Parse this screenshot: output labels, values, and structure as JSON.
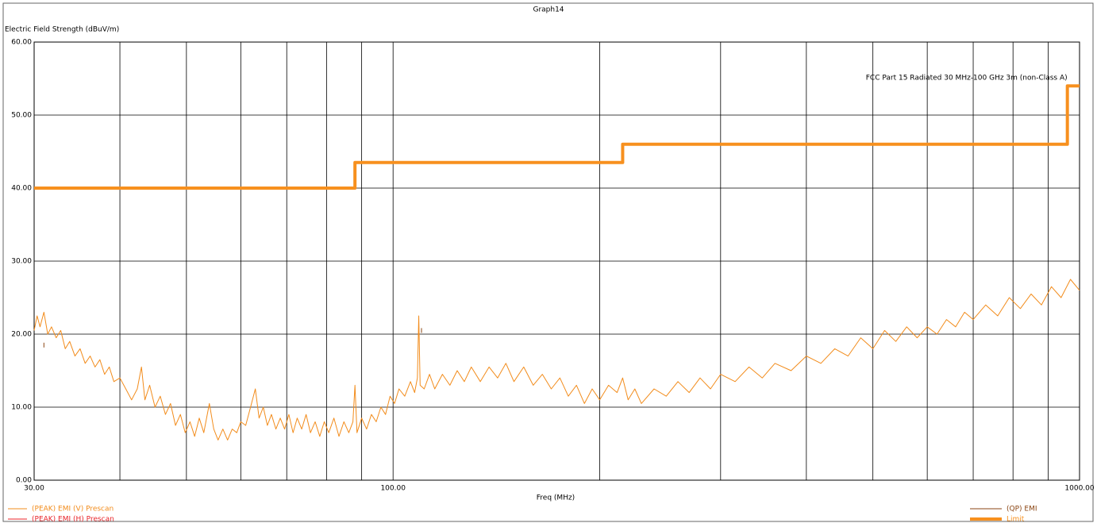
{
  "chart_data": {
    "type": "line",
    "title": "Graph14",
    "y_label": "Electric Field Strength (dBuV/m)",
    "x_label": "Freq (MHz)",
    "x_scale": "log",
    "xlim": [
      30,
      1000
    ],
    "ylim": [
      0,
      60
    ],
    "xticks": [
      {
        "value": 30,
        "label": "30.00"
      },
      {
        "value": 100,
        "label": "100.00"
      },
      {
        "value": 1000,
        "label": "1000.00"
      }
    ],
    "x_minor_grid": [
      40,
      50,
      60,
      70,
      80,
      90,
      200,
      300,
      400,
      500,
      600,
      700,
      800,
      900
    ],
    "yticks": [
      {
        "value": 0,
        "label": "0.00"
      },
      {
        "value": 10,
        "label": "10.00"
      },
      {
        "value": 20,
        "label": "20.00"
      },
      {
        "value": 30,
        "label": "30.00"
      },
      {
        "value": 40,
        "label": "40.00"
      },
      {
        "value": 50,
        "label": "50.00"
      },
      {
        "value": 60,
        "label": "60.00"
      }
    ],
    "grid": true,
    "annotations": [
      {
        "text": "FCC Part 15 Radiated 30 MHz-100 GHz 3m (non-Class A)",
        "x": 960,
        "y": 54
      }
    ],
    "series": [
      {
        "name": "(PEAK) EMI (V) Prescan",
        "color": "#f28c1c",
        "line": true,
        "x": [
          30,
          30.3,
          30.6,
          31,
          31.4,
          31.8,
          32.3,
          32.8,
          33.3,
          33.8,
          34.4,
          35,
          35.6,
          36.2,
          36.8,
          37.4,
          38,
          38.6,
          39.2,
          40,
          40.8,
          41.6,
          42.4,
          43,
          43.5,
          44.2,
          45,
          45.8,
          46.6,
          47.4,
          48.2,
          49,
          49.8,
          50.6,
          51.4,
          52.2,
          53,
          54,
          54.8,
          55.6,
          56.5,
          57.4,
          58.3,
          59.2,
          60,
          61,
          62,
          63,
          63.8,
          64.7,
          65.6,
          66.5,
          67.5,
          68.5,
          69.5,
          70.5,
          71.5,
          72.5,
          73.6,
          74.7,
          75.8,
          77,
          78.2,
          79.4,
          80.6,
          82,
          83.4,
          84.8,
          86.2,
          87.4,
          88,
          88.6,
          90,
          91.5,
          93,
          94.5,
          96,
          97.5,
          99,
          100.5,
          102,
          104,
          106,
          107.5,
          108.5,
          109,
          109.5,
          111,
          113,
          115,
          118,
          121,
          124,
          127,
          130,
          134,
          138,
          142,
          146,
          150,
          155,
          160,
          165,
          170,
          175,
          180,
          185,
          190,
          195,
          200,
          206,
          212,
          216,
          220,
          225,
          230,
          240,
          250,
          260,
          270,
          280,
          290,
          300,
          315,
          330,
          345,
          360,
          380,
          400,
          420,
          440,
          460,
          480,
          500,
          520,
          540,
          560,
          580,
          600,
          620,
          640,
          660,
          680,
          700,
          730,
          760,
          790,
          820,
          850,
          880,
          910,
          940,
          970,
          1000
        ],
        "values": [
          20.5,
          22.5,
          21,
          23,
          20,
          21,
          19.5,
          20.5,
          18,
          19,
          17,
          18,
          16,
          17,
          15.5,
          16.5,
          14.5,
          15.5,
          13.5,
          14,
          12.5,
          11,
          12.5,
          15.5,
          11,
          13,
          10,
          11.5,
          9,
          10.5,
          7.5,
          9,
          6.5,
          8,
          6,
          8.5,
          6.5,
          10.5,
          7,
          5.5,
          7,
          5.5,
          7,
          6.5,
          8,
          7.5,
          10,
          12.5,
          8.5,
          10,
          7.5,
          9,
          7,
          8.5,
          7,
          9,
          6.5,
          8.5,
          7,
          9,
          6.5,
          8,
          6,
          8,
          6.5,
          8.5,
          6,
          8,
          6.5,
          8,
          13,
          6.5,
          8.5,
          7,
          9,
          8,
          10,
          9,
          11.5,
          10.5,
          12.5,
          11.5,
          13.5,
          12,
          14,
          22.5,
          13,
          12.5,
          14.5,
          12.5,
          14.5,
          13,
          15,
          13.5,
          15.5,
          13.5,
          15.5,
          14,
          16,
          13.5,
          15.5,
          13,
          14.5,
          12.5,
          14,
          11.5,
          13,
          10.5,
          12.5,
          11,
          13,
          12,
          14,
          11,
          12.5,
          10.5,
          12.5,
          11.5,
          13.5,
          12,
          14,
          12.5,
          14.5,
          13.5,
          15.5,
          14,
          16,
          15,
          17,
          16,
          18,
          17,
          19.5,
          18,
          20.5,
          19,
          21,
          19.5,
          21,
          20,
          22,
          21,
          23,
          22,
          24,
          22.5,
          25,
          23.5,
          25.5,
          24,
          26.5,
          25,
          27.5,
          26
        ]
      },
      {
        "name": "(PEAK) EMI (H) Prescan",
        "color": "#e8252a",
        "line": true,
        "x": [],
        "values": []
      },
      {
        "name": "(QP) EMI",
        "color": "#8b4513",
        "line": false,
        "x": [
          31,
          110
        ],
        "values": [
          18.5,
          20.5
        ]
      },
      {
        "name": "Limit",
        "color": "#f7901e",
        "line": true,
        "width": 4,
        "x": [
          30,
          88,
          88,
          216,
          216,
          960,
          960,
          1000
        ],
        "values": [
          40,
          40,
          43.5,
          43.5,
          46,
          46,
          54,
          54
        ]
      }
    ]
  }
}
